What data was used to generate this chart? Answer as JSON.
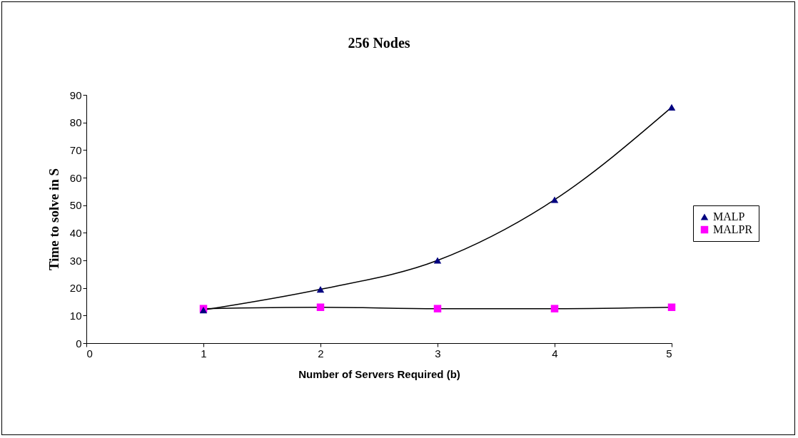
{
  "chart_data": {
    "type": "line",
    "title": "256 Nodes",
    "xlabel": "Number of Servers Required (b)",
    "ylabel": "Time to solve in S",
    "x": [
      1,
      2,
      3,
      4,
      5
    ],
    "series": [
      {
        "name": "MALP",
        "color": "#000080",
        "marker": "triangle",
        "values": [
          12,
          19.5,
          30,
          52,
          85.5
        ]
      },
      {
        "name": "MALPR",
        "color": "#ff00ff",
        "marker": "square",
        "values": [
          12.5,
          13,
          12.5,
          12.5,
          13
        ]
      }
    ],
    "xlim": [
      0,
      5
    ],
    "xticks": [
      0,
      1,
      2,
      3,
      4,
      5
    ],
    "ylim": [
      0,
      90
    ],
    "yticks": [
      0,
      10,
      20,
      30,
      40,
      50,
      60,
      70,
      80,
      90
    ],
    "grid": false,
    "legend": "right",
    "line_style": "solid"
  }
}
